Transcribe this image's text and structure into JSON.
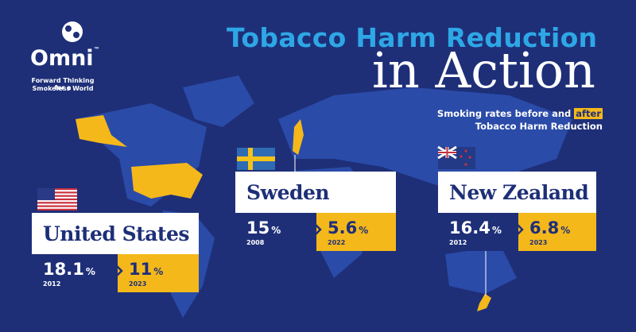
{
  "logo": {
    "name": "Omni",
    "mark": "™",
    "tagline": [
      "Forward Thinking for a",
      "Smokeless World"
    ]
  },
  "title": {
    "line1": "Tobacco Harm Reduction",
    "line2": "in Action"
  },
  "subtitle": {
    "before": "Smoking rates before and ",
    "highlight": "after",
    "line2": "Tobacco Harm Reduction"
  },
  "countries": [
    {
      "name": "United States",
      "before": {
        "value": "18.1",
        "unit": "%",
        "year": "2012"
      },
      "after": {
        "value": "11",
        "unit": "%",
        "year": "2023"
      }
    },
    {
      "name": "Sweden",
      "before": {
        "value": "15",
        "unit": "%",
        "year": "2008"
      },
      "after": {
        "value": "5.6",
        "unit": "%",
        "year": "2022"
      }
    },
    {
      "name": "New Zealand",
      "before": {
        "value": "16.4",
        "unit": "%",
        "year": "2012"
      },
      "after": {
        "value": "6.8",
        "unit": "%",
        "year": "2023"
      }
    }
  ]
}
